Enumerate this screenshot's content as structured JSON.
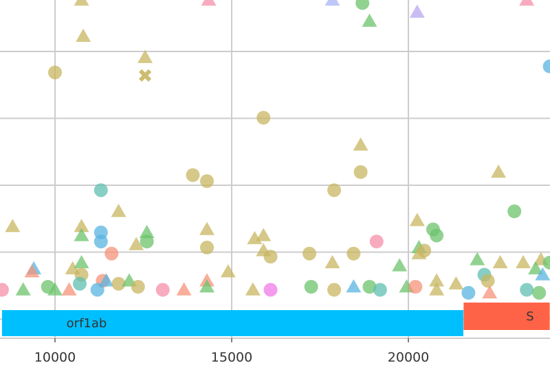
{
  "chart_data": {
    "type": "scatter",
    "title": "",
    "xlabel": "",
    "ylabel": "",
    "xlim": [
      8500,
      24000
    ],
    "xticks": [
      10000,
      15000,
      20000
    ],
    "xtick_labels": [
      "10000",
      "15000",
      "20000"
    ],
    "y_gridlines": 5,
    "grid": true,
    "colors": {
      "olive": "#c8b560",
      "green": "#6cc36c",
      "teal": "#5fbfb0",
      "blue": "#5ab4e0",
      "pink": "#f58fa8",
      "orange": "#f5937a",
      "lavender": "#b9a7f0",
      "periwinkle": "#a8b4f5",
      "magenta": "#f07ae8",
      "gene_orf1ab": "#00bfff",
      "gene_S": "#ff6347"
    },
    "genes": [
      {
        "name": "orf1ab",
        "start": 8500,
        "end": 21555,
        "color": "gene_orf1ab"
      },
      {
        "name": "S",
        "start": 21563,
        "end": 24000,
        "color": "gene_S"
      }
    ],
    "points": [
      {
        "x": 10000,
        "y": 0.76,
        "shape": "circle",
        "color": "olive"
      },
      {
        "x": 10800,
        "y": 0.88,
        "shape": "triangle",
        "color": "olive"
      },
      {
        "x": 10750,
        "y": 1.0,
        "shape": "triangle",
        "color": "olive"
      },
      {
        "x": 12550,
        "y": 0.81,
        "shape": "triangle",
        "color": "olive"
      },
      {
        "x": 12550,
        "y": 0.75,
        "shape": "cross",
        "color": "olive"
      },
      {
        "x": 14350,
        "y": 1.0,
        "shape": "triangle",
        "color": "pink"
      },
      {
        "x": 17850,
        "y": 1.0,
        "shape": "triangle",
        "color": "periwinkle"
      },
      {
        "x": 18700,
        "y": 0.99,
        "shape": "circle",
        "color": "green"
      },
      {
        "x": 18900,
        "y": 0.93,
        "shape": "triangle",
        "color": "green"
      },
      {
        "x": 20250,
        "y": 0.96,
        "shape": "triangle",
        "color": "lavender"
      },
      {
        "x": 23350,
        "y": 1.0,
        "shape": "triangle",
        "color": "pink"
      },
      {
        "x": 24000,
        "y": 0.78,
        "shape": "circle",
        "color": "blue"
      },
      {
        "x": 15900,
        "y": 0.61,
        "shape": "circle",
        "color": "olive"
      },
      {
        "x": 13900,
        "y": 0.42,
        "shape": "circle",
        "color": "olive"
      },
      {
        "x": 14300,
        "y": 0.4,
        "shape": "circle",
        "color": "olive"
      },
      {
        "x": 18650,
        "y": 0.52,
        "shape": "triangle",
        "color": "olive"
      },
      {
        "x": 18650,
        "y": 0.43,
        "shape": "circle",
        "color": "olive"
      },
      {
        "x": 22550,
        "y": 0.43,
        "shape": "triangle",
        "color": "olive"
      },
      {
        "x": 17900,
        "y": 0.37,
        "shape": "circle",
        "color": "olive"
      },
      {
        "x": 23000,
        "y": 0.3,
        "shape": "circle",
        "color": "green"
      },
      {
        "x": 11300,
        "y": 0.37,
        "shape": "circle",
        "color": "teal"
      },
      {
        "x": 11800,
        "y": 0.3,
        "shape": "triangle",
        "color": "olive"
      },
      {
        "x": 8800,
        "y": 0.25,
        "shape": "triangle",
        "color": "olive"
      },
      {
        "x": 20250,
        "y": 0.27,
        "shape": "triangle",
        "color": "olive"
      },
      {
        "x": 20700,
        "y": 0.24,
        "shape": "circle",
        "color": "green"
      },
      {
        "x": 20800,
        "y": 0.22,
        "shape": "circle",
        "color": "green"
      },
      {
        "x": 10750,
        "y": 0.25,
        "shape": "triangle",
        "color": "olive"
      },
      {
        "x": 10750,
        "y": 0.22,
        "shape": "triangle",
        "color": "green"
      },
      {
        "x": 11300,
        "y": 0.23,
        "shape": "circle",
        "color": "blue"
      },
      {
        "x": 11300,
        "y": 0.2,
        "shape": "circle",
        "color": "blue"
      },
      {
        "x": 12600,
        "y": 0.2,
        "shape": "circle",
        "color": "green"
      },
      {
        "x": 12600,
        "y": 0.23,
        "shape": "triangle",
        "color": "green"
      },
      {
        "x": 12300,
        "y": 0.19,
        "shape": "triangle",
        "color": "olive"
      },
      {
        "x": 14300,
        "y": 0.24,
        "shape": "triangle",
        "color": "olive"
      },
      {
        "x": 14300,
        "y": 0.18,
        "shape": "circle",
        "color": "olive"
      },
      {
        "x": 15650,
        "y": 0.21,
        "shape": "triangle",
        "color": "olive"
      },
      {
        "x": 15900,
        "y": 0.22,
        "shape": "triangle",
        "color": "olive"
      },
      {
        "x": 15900,
        "y": 0.17,
        "shape": "triangle",
        "color": "olive"
      },
      {
        "x": 16100,
        "y": 0.15,
        "shape": "circle",
        "color": "olive"
      },
      {
        "x": 11600,
        "y": 0.16,
        "shape": "circle",
        "color": "orange"
      },
      {
        "x": 19100,
        "y": 0.2,
        "shape": "circle",
        "color": "pink"
      },
      {
        "x": 17200,
        "y": 0.16,
        "shape": "circle",
        "color": "olive"
      },
      {
        "x": 18450,
        "y": 0.16,
        "shape": "circle",
        "color": "olive"
      },
      {
        "x": 17850,
        "y": 0.13,
        "shape": "triangle",
        "color": "olive"
      },
      {
        "x": 20300,
        "y": 0.18,
        "shape": "triangle",
        "color": "green"
      },
      {
        "x": 20300,
        "y": 0.16,
        "shape": "triangle",
        "color": "olive"
      },
      {
        "x": 20450,
        "y": 0.17,
        "shape": "circle",
        "color": "olive"
      },
      {
        "x": 19750,
        "y": 0.12,
        "shape": "triangle",
        "color": "green"
      },
      {
        "x": 21950,
        "y": 0.14,
        "shape": "triangle",
        "color": "green"
      },
      {
        "x": 22600,
        "y": 0.13,
        "shape": "triangle",
        "color": "olive"
      },
      {
        "x": 23250,
        "y": 0.13,
        "shape": "triangle",
        "color": "olive"
      },
      {
        "x": 23750,
        "y": 0.14,
        "shape": "triangle",
        "color": "olive"
      },
      {
        "x": 24000,
        "y": 0.13,
        "shape": "circle",
        "color": "green"
      },
      {
        "x": 23600,
        "y": 0.11,
        "shape": "triangle",
        "color": "green"
      },
      {
        "x": 23800,
        "y": 0.09,
        "shape": "triangle",
        "color": "blue"
      },
      {
        "x": 22150,
        "y": 0.09,
        "shape": "circle",
        "color": "teal"
      },
      {
        "x": 22250,
        "y": 0.07,
        "shape": "circle",
        "color": "olive"
      },
      {
        "x": 9400,
        "y": 0.11,
        "shape": "triangle",
        "color": "blue"
      },
      {
        "x": 9350,
        "y": 0.1,
        "shape": "triangle",
        "color": "orange"
      },
      {
        "x": 10500,
        "y": 0.11,
        "shape": "triangle",
        "color": "olive"
      },
      {
        "x": 10750,
        "y": 0.13,
        "shape": "triangle",
        "color": "green"
      },
      {
        "x": 10750,
        "y": 0.09,
        "shape": "circle",
        "color": "olive"
      },
      {
        "x": 10700,
        "y": 0.06,
        "shape": "circle",
        "color": "teal"
      },
      {
        "x": 11350,
        "y": 0.07,
        "shape": "circle",
        "color": "orange"
      },
      {
        "x": 11450,
        "y": 0.07,
        "shape": "triangle",
        "color": "blue"
      },
      {
        "x": 11800,
        "y": 0.06,
        "shape": "circle",
        "color": "olive"
      },
      {
        "x": 12100,
        "y": 0.07,
        "shape": "triangle",
        "color": "green"
      },
      {
        "x": 12350,
        "y": 0.05,
        "shape": "circle",
        "color": "olive"
      },
      {
        "x": 13050,
        "y": 0.04,
        "shape": "circle",
        "color": "pink"
      },
      {
        "x": 13650,
        "y": 0.04,
        "shape": "triangle",
        "color": "orange"
      },
      {
        "x": 14300,
        "y": 0.07,
        "shape": "triangle",
        "color": "orange"
      },
      {
        "x": 14300,
        "y": 0.05,
        "shape": "triangle",
        "color": "green"
      },
      {
        "x": 14900,
        "y": 0.1,
        "shape": "triangle",
        "color": "olive"
      },
      {
        "x": 15600,
        "y": 0.04,
        "shape": "triangle",
        "color": "olive"
      },
      {
        "x": 16100,
        "y": 0.04,
        "shape": "circle",
        "color": "magenta"
      },
      {
        "x": 17250,
        "y": 0.05,
        "shape": "circle",
        "color": "green"
      },
      {
        "x": 17900,
        "y": 0.04,
        "shape": "circle",
        "color": "olive"
      },
      {
        "x": 18450,
        "y": 0.05,
        "shape": "triangle",
        "color": "blue"
      },
      {
        "x": 18900,
        "y": 0.05,
        "shape": "circle",
        "color": "green"
      },
      {
        "x": 19200,
        "y": 0.04,
        "shape": "circle",
        "color": "teal"
      },
      {
        "x": 19950,
        "y": 0.05,
        "shape": "triangle",
        "color": "green"
      },
      {
        "x": 20200,
        "y": 0.05,
        "shape": "circle",
        "color": "orange"
      },
      {
        "x": 20800,
        "y": 0.04,
        "shape": "triangle",
        "color": "olive"
      },
      {
        "x": 20800,
        "y": 0.07,
        "shape": "triangle",
        "color": "olive"
      },
      {
        "x": 21350,
        "y": 0.06,
        "shape": "triangle",
        "color": "olive"
      },
      {
        "x": 21700,
        "y": 0.03,
        "shape": "circle",
        "color": "blue"
      },
      {
        "x": 22300,
        "y": 0.03,
        "shape": "triangle",
        "color": "orange"
      },
      {
        "x": 23350,
        "y": 0.04,
        "shape": "circle",
        "color": "teal"
      },
      {
        "x": 23700,
        "y": 0.03,
        "shape": "circle",
        "color": "green"
      },
      {
        "x": 9100,
        "y": 0.04,
        "shape": "triangle",
        "color": "green"
      },
      {
        "x": 9800,
        "y": 0.05,
        "shape": "circle",
        "color": "green"
      },
      {
        "x": 10000,
        "y": 0.04,
        "shape": "triangle",
        "color": "green"
      },
      {
        "x": 10400,
        "y": 0.04,
        "shape": "triangle",
        "color": "orange"
      },
      {
        "x": 11200,
        "y": 0.04,
        "shape": "circle",
        "color": "blue"
      },
      {
        "x": 8500,
        "y": 0.04,
        "shape": "circle",
        "color": "pink"
      }
    ]
  }
}
